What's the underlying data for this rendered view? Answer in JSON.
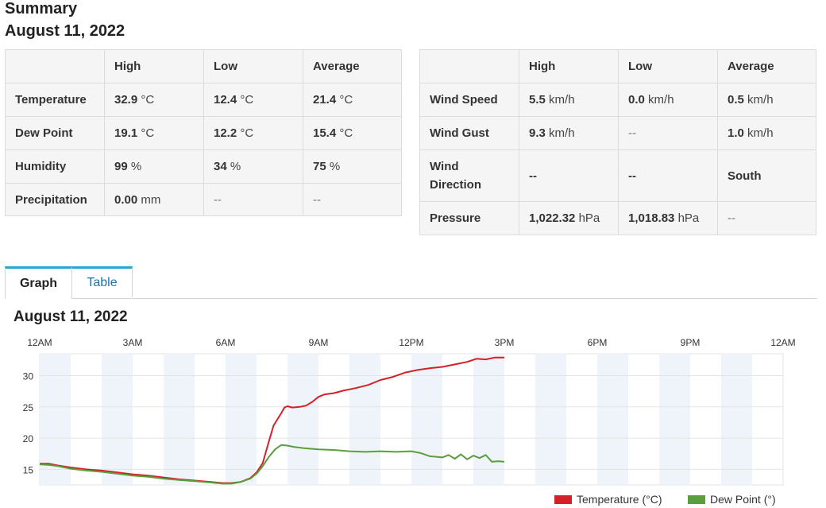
{
  "summary": {
    "title": "Summary",
    "date": "August 11, 2022"
  },
  "left_table": {
    "headers": [
      "",
      "High",
      "Low",
      "Average"
    ],
    "rows": [
      {
        "label": "Temperature",
        "high": "32.9",
        "high_unit": "°C",
        "low": "12.4",
        "low_unit": "°C",
        "avg": "21.4",
        "avg_unit": "°C"
      },
      {
        "label": "Dew Point",
        "high": "19.1",
        "high_unit": "°C",
        "low": "12.2",
        "low_unit": "°C",
        "avg": "15.4",
        "avg_unit": "°C"
      },
      {
        "label": "Humidity",
        "high": "99",
        "high_unit": "%",
        "low": "34",
        "low_unit": "%",
        "avg": "75",
        "avg_unit": "%"
      },
      {
        "label": "Precipitation",
        "high": "0.00",
        "high_unit": "mm",
        "low": "--",
        "avg": "--"
      }
    ]
  },
  "right_table": {
    "headers": [
      "",
      "High",
      "Low",
      "Average"
    ],
    "rows": [
      {
        "label": "Wind Speed",
        "high": "5.5",
        "high_unit": "km/h",
        "low": "0.0",
        "low_unit": "km/h",
        "avg": "0.5",
        "avg_unit": "km/h"
      },
      {
        "label": "Wind Gust",
        "high": "9.3",
        "high_unit": "km/h",
        "low": "--",
        "avg": "1.0",
        "avg_unit": "km/h"
      },
      {
        "label": "Wind Direction",
        "high": "--",
        "low": "--",
        "avg": "South"
      },
      {
        "label": "Pressure",
        "high": "1,022.32",
        "high_unit": "hPa",
        "low": "1,018.83",
        "low_unit": "hPa",
        "avg": "--"
      }
    ]
  },
  "tabs": [
    {
      "label": "Graph",
      "active": true
    },
    {
      "label": "Table",
      "active": false
    }
  ],
  "chart_data": {
    "type": "line",
    "title": "August 11, 2022",
    "x_ticks": [
      "12AM",
      "3AM",
      "6AM",
      "9AM",
      "12PM",
      "3PM",
      "6PM",
      "9PM",
      "12AM"
    ],
    "x_range_hours": [
      0,
      24
    ],
    "y_ticks": [
      15,
      20,
      25,
      30
    ],
    "ylim": [
      12.5,
      33.5
    ],
    "grid": true,
    "legend_position": "bottom-right",
    "series": [
      {
        "name": "Temperature (°C)",
        "color": "#d42028",
        "points": [
          [
            0.0,
            15.9
          ],
          [
            0.3,
            15.9
          ],
          [
            0.6,
            15.6
          ],
          [
            1.0,
            15.3
          ],
          [
            1.5,
            15.0
          ],
          [
            2.0,
            14.8
          ],
          [
            2.5,
            14.5
          ],
          [
            3.0,
            14.2
          ],
          [
            3.5,
            14.0
          ],
          [
            4.0,
            13.7
          ],
          [
            4.5,
            13.4
          ],
          [
            5.0,
            13.2
          ],
          [
            5.5,
            13.0
          ],
          [
            5.9,
            12.8
          ],
          [
            6.2,
            12.8
          ],
          [
            6.5,
            13.0
          ],
          [
            6.8,
            13.6
          ],
          [
            7.0,
            14.5
          ],
          [
            7.2,
            16.0
          ],
          [
            7.4,
            19.5
          ],
          [
            7.55,
            22.0
          ],
          [
            7.7,
            23.2
          ],
          [
            7.8,
            24.0
          ],
          [
            7.9,
            24.9
          ],
          [
            8.0,
            25.1
          ],
          [
            8.15,
            24.9
          ],
          [
            8.4,
            25.0
          ],
          [
            8.6,
            25.2
          ],
          [
            8.8,
            25.8
          ],
          [
            9.0,
            26.6
          ],
          [
            9.2,
            27.0
          ],
          [
            9.5,
            27.2
          ],
          [
            9.8,
            27.6
          ],
          [
            10.2,
            28.0
          ],
          [
            10.6,
            28.5
          ],
          [
            11.0,
            29.3
          ],
          [
            11.4,
            29.8
          ],
          [
            11.8,
            30.5
          ],
          [
            12.2,
            30.9
          ],
          [
            12.6,
            31.2
          ],
          [
            13.0,
            31.4
          ],
          [
            13.4,
            31.8
          ],
          [
            13.8,
            32.2
          ],
          [
            14.1,
            32.7
          ],
          [
            14.4,
            32.6
          ],
          [
            14.7,
            32.9
          ],
          [
            15.0,
            32.9
          ]
        ]
      },
      {
        "name": "Dew Point (°)",
        "color": "#5b9e3e",
        "points": [
          [
            0.0,
            15.8
          ],
          [
            0.3,
            15.7
          ],
          [
            0.6,
            15.5
          ],
          [
            1.0,
            15.1
          ],
          [
            1.5,
            14.8
          ],
          [
            2.0,
            14.6
          ],
          [
            2.5,
            14.3
          ],
          [
            3.0,
            14.0
          ],
          [
            3.5,
            13.8
          ],
          [
            4.0,
            13.5
          ],
          [
            4.5,
            13.3
          ],
          [
            5.0,
            13.1
          ],
          [
            5.5,
            12.9
          ],
          [
            5.9,
            12.7
          ],
          [
            6.2,
            12.7
          ],
          [
            6.5,
            13.0
          ],
          [
            6.8,
            13.5
          ],
          [
            7.0,
            14.3
          ],
          [
            7.2,
            15.5
          ],
          [
            7.4,
            17.0
          ],
          [
            7.6,
            18.2
          ],
          [
            7.8,
            18.9
          ],
          [
            8.0,
            18.8
          ],
          [
            8.2,
            18.6
          ],
          [
            8.5,
            18.4
          ],
          [
            9.0,
            18.2
          ],
          [
            9.5,
            18.1
          ],
          [
            10.0,
            17.9
          ],
          [
            10.5,
            17.8
          ],
          [
            11.0,
            17.9
          ],
          [
            11.5,
            17.8
          ],
          [
            12.0,
            17.9
          ],
          [
            12.3,
            17.6
          ],
          [
            12.6,
            17.1
          ],
          [
            13.0,
            16.9
          ],
          [
            13.2,
            17.3
          ],
          [
            13.4,
            16.7
          ],
          [
            13.6,
            17.4
          ],
          [
            13.8,
            16.6
          ],
          [
            14.0,
            17.2
          ],
          [
            14.2,
            16.8
          ],
          [
            14.4,
            17.3
          ],
          [
            14.6,
            16.2
          ],
          [
            14.8,
            16.3
          ],
          [
            15.0,
            16.2
          ]
        ]
      }
    ]
  }
}
